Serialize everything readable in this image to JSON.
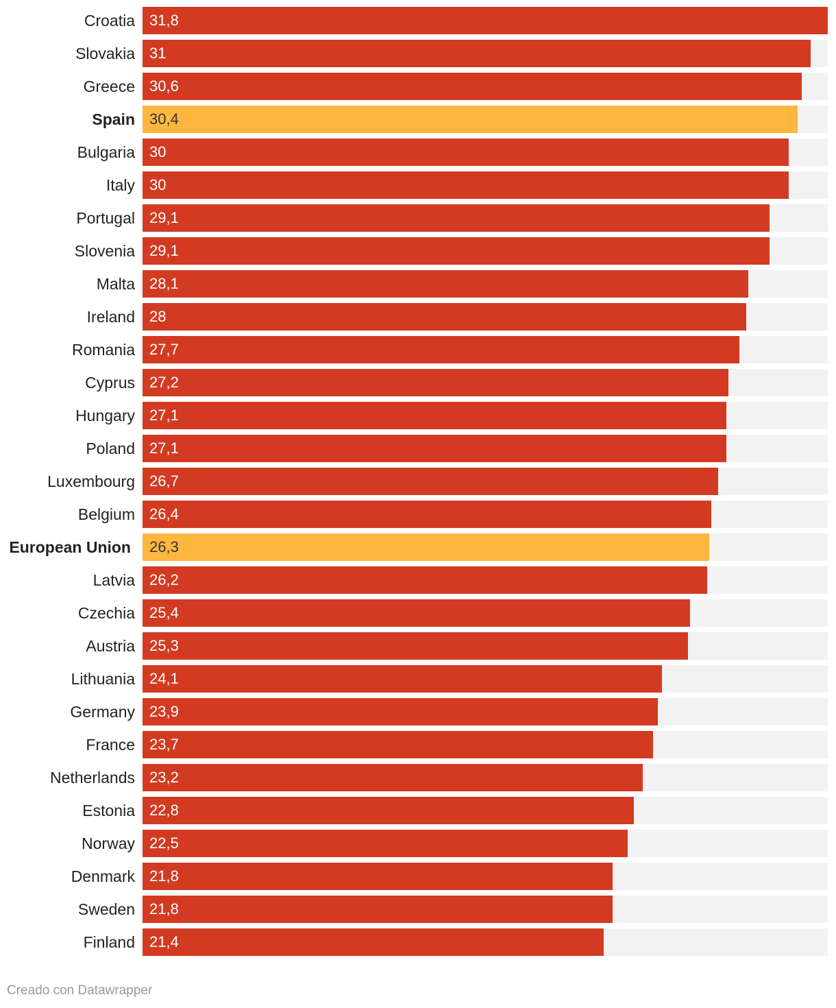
{
  "chart_data": {
    "type": "bar",
    "orientation": "horizontal",
    "xlim": [
      0,
      31.8
    ],
    "categories": [
      "Croatia",
      "Slovakia",
      "Greece",
      "Spain",
      "Bulgaria",
      "Italy",
      "Portugal",
      "Slovenia",
      "Malta",
      "Ireland",
      "Romania",
      "Cyprus",
      "Hungary",
      "Poland",
      "Luxembourg",
      "Belgium",
      "European Union",
      "Latvia",
      "Czechia",
      "Austria",
      "Lithuania",
      "Germany",
      "France",
      "Netherlands",
      "Estonia",
      "Norway",
      "Denmark",
      "Sweden",
      "Finland"
    ],
    "values": [
      31.8,
      31,
      30.6,
      30.4,
      30,
      30,
      29.1,
      29.1,
      28.1,
      28,
      27.7,
      27.2,
      27.1,
      27.1,
      26.7,
      26.4,
      26.3,
      26.2,
      25.4,
      25.3,
      24.1,
      23.9,
      23.7,
      23.2,
      22.8,
      22.5,
      21.8,
      21.8,
      21.4
    ],
    "value_labels": [
      "31,8",
      "31",
      "30,6",
      "30,4",
      "30",
      "30",
      "29,1",
      "29,1",
      "28,1",
      "28",
      "27,7",
      "27,2",
      "27,1",
      "27,1",
      "26,7",
      "26,4",
      "26,3",
      "26,2",
      "25,4",
      "25,3",
      "24,1",
      "23,9",
      "23,7",
      "23,2",
      "22,8",
      "22,5",
      "21,8",
      "21,8",
      "21,4"
    ],
    "highlighted": [
      "Spain",
      "European Union"
    ],
    "colors": {
      "default_bar": "#d23b22",
      "highlight_bar": "#fdb73e",
      "track": "#f2f2f2",
      "default_value_text": "#ffffff",
      "highlight_value_text": "#333333"
    }
  },
  "footer": {
    "credit": "Creado con Datawrapper"
  }
}
